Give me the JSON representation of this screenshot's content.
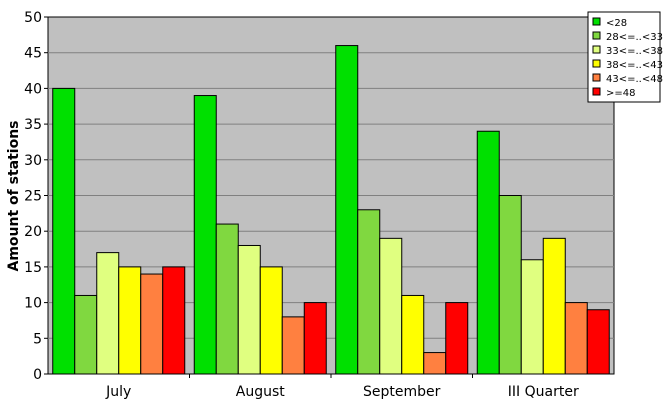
{
  "chart_data": {
    "type": "bar",
    "title": "",
    "xlabel": "",
    "ylabel": "Amount of stations",
    "ylim": [
      0,
      50
    ],
    "yticks": [
      0,
      5,
      10,
      15,
      20,
      25,
      30,
      35,
      40,
      45,
      50
    ],
    "grid": true,
    "legend_position": "top-right",
    "plot_background": "#c0c0c0",
    "categories": [
      "July",
      "August",
      "September",
      "III Quarter"
    ],
    "series": [
      {
        "name": "<28",
        "color": "#00e000",
        "values": [
          40,
          39,
          46,
          34
        ]
      },
      {
        "name": "28<=..<33",
        "color": "#80d840",
        "values": [
          11,
          21,
          23,
          25
        ]
      },
      {
        "name": "33<=..<38",
        "color": "#e0ff80",
        "values": [
          17,
          18,
          19,
          16
        ]
      },
      {
        "name": "38<=..<43",
        "color": "#ffff00",
        "values": [
          15,
          15,
          11,
          19
        ]
      },
      {
        "name": "43<=..<48",
        "color": "#ff8040",
        "values": [
          14,
          8,
          3,
          10
        ]
      },
      {
        "name": ">=48",
        "color": "#ff0000",
        "values": [
          15,
          10,
          10,
          9
        ]
      }
    ]
  }
}
